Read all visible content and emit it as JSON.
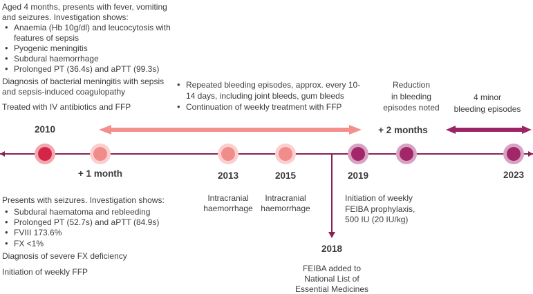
{
  "colors": {
    "text": "#3c3c3c",
    "axis_line": "#8a2156",
    "pink_arrow": "#f3908c",
    "magenta_arrow": "#9c2366",
    "node_red_inner": "#d42449",
    "node_red_outer": "#f2a8ae",
    "node_pink_inner": "#f08c89",
    "node_pink_outer": "#fbcfd0",
    "node_magenta_inner": "#a2266a",
    "node_magenta_outer": "#d8a3c2"
  },
  "case_2010_pre": {
    "intro": "Aged 4 months, presents with fever, vomiting and seizures. Investigation shows:",
    "bullets": [
      "Anaemia (Hb 10g/dl) and leucocytosis with features of sepsis",
      "Pyogenic meningitis",
      "Subdural haemorrhage",
      "Prolonged PT (36.4s) and aPTT (99.3s)"
    ],
    "diagnosis": "Diagnosis of bacterial meningitis with sepsis and sepsis-induced coagulopathy",
    "treatment": "Treated with IV antibiotics and FFP"
  },
  "mid_period": {
    "bullets": [
      "Repeated bleeding episodes, approx. every 10-14 days, including joint bleeds, gum bleeds",
      "Continuation of weekly treatment with FFP"
    ]
  },
  "post_2019": {
    "reduction_lines": [
      "Reduction",
      "in bleeding",
      "episodes noted"
    ],
    "minor_lines": [
      "4 minor",
      "bleeding episodes"
    ]
  },
  "timeline": {
    "labels": {
      "y2010": "2010",
      "plus1month": "+ 1 month",
      "y2013": "2013",
      "y2015": "2015",
      "y2018": "2018",
      "y2019": "2019",
      "plus2months": "+ 2 months",
      "y2023": "2023"
    },
    "events": {
      "ich2013": "Intracranial haemorrhage",
      "ich2015": "Intracranial haemorrhage",
      "feiba2019": "Initiation of weekly FEIBA prophylaxis, 500 IU (20 IU/kg)",
      "feiba2018_lines": [
        "FEIBA added to",
        "National List of",
        "Essential Medicines"
      ]
    }
  },
  "case_plus1month": {
    "intro": "Presents with seizures. Investigation shows:",
    "bullets": [
      "Subdural haematoma and rebleeding",
      "Prolonged PT (52.7s) and aPTT (84.9s)",
      "FVIII 173.6%",
      "FX <1%"
    ],
    "diagnosis": "Diagnosis of severe FX deficiency",
    "treatment": "Initiation of weekly FFP"
  }
}
